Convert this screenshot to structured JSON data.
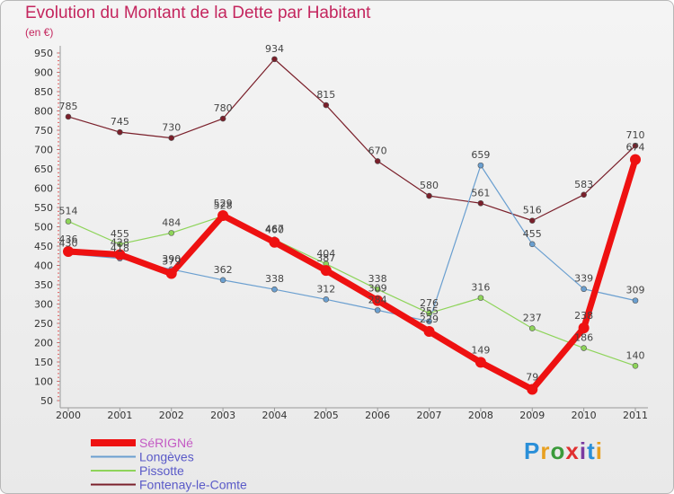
{
  "page": {
    "title": "Evolution du Montant de la Dette par Habitant",
    "subtitle": "(en €)",
    "logo": [
      "P",
      "r",
      "o",
      "x",
      "i",
      "t",
      "i"
    ],
    "logo_colors": [
      "#2a8fd8",
      "#e8a020",
      "#3a9a3a",
      "#e03030",
      "#7a3aa0",
      "#2a8fd8",
      "#e8a020"
    ]
  },
  "chart_data": {
    "type": "line",
    "title": "Evolution du Montant de la Dette par Habitant",
    "subtitle": "(en €)",
    "x": [
      "2000",
      "2001",
      "2002",
      "2003",
      "2004",
      "2005",
      "2006",
      "2007",
      "2008",
      "2009",
      "2010",
      "2011"
    ],
    "yticks": [
      50,
      100,
      150,
      200,
      250,
      300,
      350,
      400,
      450,
      500,
      550,
      600,
      650,
      700,
      750,
      800,
      850,
      900,
      950
    ],
    "ylim": [
      50,
      950
    ],
    "grid": false,
    "legend_position": "bottom-left",
    "series": [
      {
        "name": "Fontenay-le-Comte",
        "color": "#7a1f2a",
        "values": [
          785,
          745,
          730,
          780,
          934,
          815,
          670,
          580,
          561,
          516,
          583,
          710
        ]
      },
      {
        "name": "Longèves",
        "color": "#6a9fd0",
        "values": [
          430,
          418,
          390,
          362,
          338,
          312,
          284,
          255,
          659,
          455,
          339,
          309
        ]
      },
      {
        "name": "Pissotte",
        "color": "#8ed45a",
        "values": [
          514,
          455,
          484,
          528,
          467,
          404,
          338,
          276,
          316,
          237,
          186,
          140
        ]
      },
      {
        "name": "SéRIGNé",
        "color": "#ee1111",
        "values": [
          436,
          428,
          379,
          529,
          460,
          387,
          309,
          229,
          149,
          79,
          238,
          674
        ]
      }
    ]
  }
}
